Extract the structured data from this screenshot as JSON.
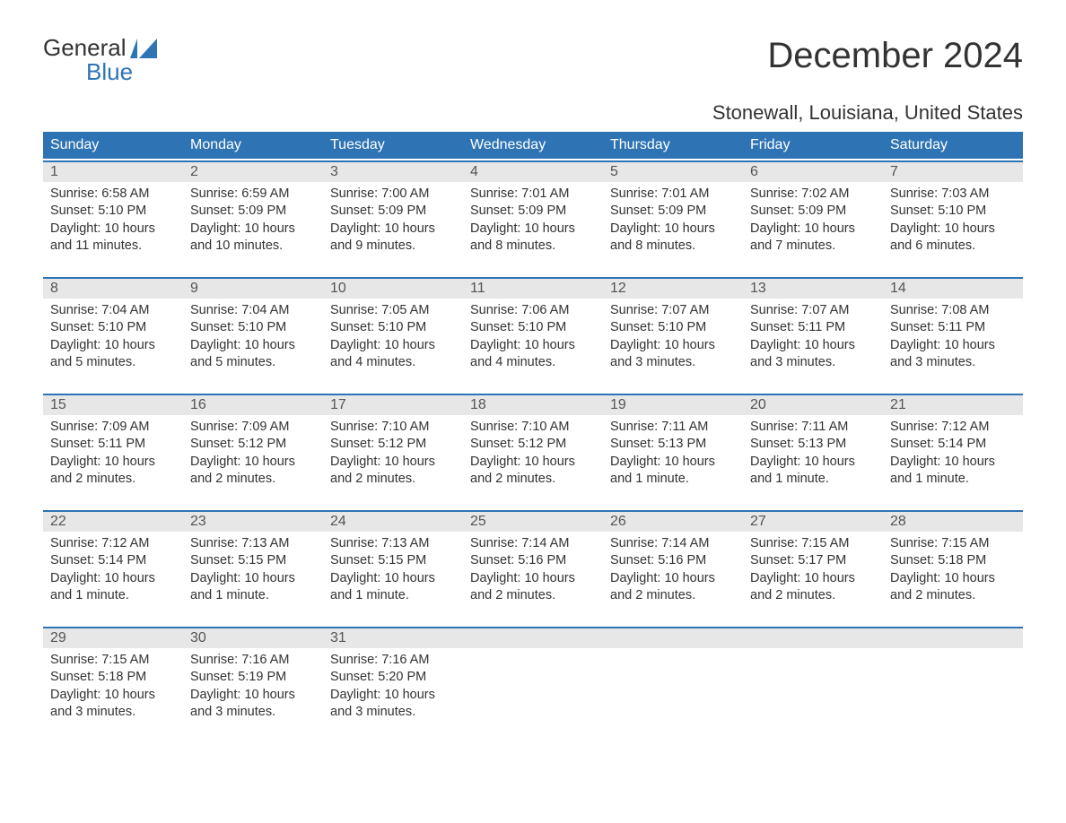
{
  "logo": {
    "line1": "General",
    "line2": "Blue",
    "accent_color": "#2e74b5"
  },
  "title": "December 2024",
  "location": "Stonewall, Louisiana, United States",
  "colors": {
    "header_bg": "#2e74b5",
    "header_text": "#ffffff",
    "daynum_bg": "#e7e7e7",
    "body_text": "#333333",
    "page_bg": "#ffffff"
  },
  "typography": {
    "title_fontsize": 40,
    "location_fontsize": 22,
    "weekday_fontsize": 16,
    "daynum_fontsize": 16,
    "body_fontsize": 14.5
  },
  "weekdays": [
    "Sunday",
    "Monday",
    "Tuesday",
    "Wednesday",
    "Thursday",
    "Friday",
    "Saturday"
  ],
  "weeks": [
    [
      {
        "n": "1",
        "sr": "Sunrise: 6:58 AM",
        "ss": "Sunset: 5:10 PM",
        "d1": "Daylight: 10 hours",
        "d2": "and 11 minutes."
      },
      {
        "n": "2",
        "sr": "Sunrise: 6:59 AM",
        "ss": "Sunset: 5:09 PM",
        "d1": "Daylight: 10 hours",
        "d2": "and 10 minutes."
      },
      {
        "n": "3",
        "sr": "Sunrise: 7:00 AM",
        "ss": "Sunset: 5:09 PM",
        "d1": "Daylight: 10 hours",
        "d2": "and 9 minutes."
      },
      {
        "n": "4",
        "sr": "Sunrise: 7:01 AM",
        "ss": "Sunset: 5:09 PM",
        "d1": "Daylight: 10 hours",
        "d2": "and 8 minutes."
      },
      {
        "n": "5",
        "sr": "Sunrise: 7:01 AM",
        "ss": "Sunset: 5:09 PM",
        "d1": "Daylight: 10 hours",
        "d2": "and 8 minutes."
      },
      {
        "n": "6",
        "sr": "Sunrise: 7:02 AM",
        "ss": "Sunset: 5:09 PM",
        "d1": "Daylight: 10 hours",
        "d2": "and 7 minutes."
      },
      {
        "n": "7",
        "sr": "Sunrise: 7:03 AM",
        "ss": "Sunset: 5:10 PM",
        "d1": "Daylight: 10 hours",
        "d2": "and 6 minutes."
      }
    ],
    [
      {
        "n": "8",
        "sr": "Sunrise: 7:04 AM",
        "ss": "Sunset: 5:10 PM",
        "d1": "Daylight: 10 hours",
        "d2": "and 5 minutes."
      },
      {
        "n": "9",
        "sr": "Sunrise: 7:04 AM",
        "ss": "Sunset: 5:10 PM",
        "d1": "Daylight: 10 hours",
        "d2": "and 5 minutes."
      },
      {
        "n": "10",
        "sr": "Sunrise: 7:05 AM",
        "ss": "Sunset: 5:10 PM",
        "d1": "Daylight: 10 hours",
        "d2": "and 4 minutes."
      },
      {
        "n": "11",
        "sr": "Sunrise: 7:06 AM",
        "ss": "Sunset: 5:10 PM",
        "d1": "Daylight: 10 hours",
        "d2": "and 4 minutes."
      },
      {
        "n": "12",
        "sr": "Sunrise: 7:07 AM",
        "ss": "Sunset: 5:10 PM",
        "d1": "Daylight: 10 hours",
        "d2": "and 3 minutes."
      },
      {
        "n": "13",
        "sr": "Sunrise: 7:07 AM",
        "ss": "Sunset: 5:11 PM",
        "d1": "Daylight: 10 hours",
        "d2": "and 3 minutes."
      },
      {
        "n": "14",
        "sr": "Sunrise: 7:08 AM",
        "ss": "Sunset: 5:11 PM",
        "d1": "Daylight: 10 hours",
        "d2": "and 3 minutes."
      }
    ],
    [
      {
        "n": "15",
        "sr": "Sunrise: 7:09 AM",
        "ss": "Sunset: 5:11 PM",
        "d1": "Daylight: 10 hours",
        "d2": "and 2 minutes."
      },
      {
        "n": "16",
        "sr": "Sunrise: 7:09 AM",
        "ss": "Sunset: 5:12 PM",
        "d1": "Daylight: 10 hours",
        "d2": "and 2 minutes."
      },
      {
        "n": "17",
        "sr": "Sunrise: 7:10 AM",
        "ss": "Sunset: 5:12 PM",
        "d1": "Daylight: 10 hours",
        "d2": "and 2 minutes."
      },
      {
        "n": "18",
        "sr": "Sunrise: 7:10 AM",
        "ss": "Sunset: 5:12 PM",
        "d1": "Daylight: 10 hours",
        "d2": "and 2 minutes."
      },
      {
        "n": "19",
        "sr": "Sunrise: 7:11 AM",
        "ss": "Sunset: 5:13 PM",
        "d1": "Daylight: 10 hours",
        "d2": "and 1 minute."
      },
      {
        "n": "20",
        "sr": "Sunrise: 7:11 AM",
        "ss": "Sunset: 5:13 PM",
        "d1": "Daylight: 10 hours",
        "d2": "and 1 minute."
      },
      {
        "n": "21",
        "sr": "Sunrise: 7:12 AM",
        "ss": "Sunset: 5:14 PM",
        "d1": "Daylight: 10 hours",
        "d2": "and 1 minute."
      }
    ],
    [
      {
        "n": "22",
        "sr": "Sunrise: 7:12 AM",
        "ss": "Sunset: 5:14 PM",
        "d1": "Daylight: 10 hours",
        "d2": "and 1 minute."
      },
      {
        "n": "23",
        "sr": "Sunrise: 7:13 AM",
        "ss": "Sunset: 5:15 PM",
        "d1": "Daylight: 10 hours",
        "d2": "and 1 minute."
      },
      {
        "n": "24",
        "sr": "Sunrise: 7:13 AM",
        "ss": "Sunset: 5:15 PM",
        "d1": "Daylight: 10 hours",
        "d2": "and 1 minute."
      },
      {
        "n": "25",
        "sr": "Sunrise: 7:14 AM",
        "ss": "Sunset: 5:16 PM",
        "d1": "Daylight: 10 hours",
        "d2": "and 2 minutes."
      },
      {
        "n": "26",
        "sr": "Sunrise: 7:14 AM",
        "ss": "Sunset: 5:16 PM",
        "d1": "Daylight: 10 hours",
        "d2": "and 2 minutes."
      },
      {
        "n": "27",
        "sr": "Sunrise: 7:15 AM",
        "ss": "Sunset: 5:17 PM",
        "d1": "Daylight: 10 hours",
        "d2": "and 2 minutes."
      },
      {
        "n": "28",
        "sr": "Sunrise: 7:15 AM",
        "ss": "Sunset: 5:18 PM",
        "d1": "Daylight: 10 hours",
        "d2": "and 2 minutes."
      }
    ],
    [
      {
        "n": "29",
        "sr": "Sunrise: 7:15 AM",
        "ss": "Sunset: 5:18 PM",
        "d1": "Daylight: 10 hours",
        "d2": "and 3 minutes."
      },
      {
        "n": "30",
        "sr": "Sunrise: 7:16 AM",
        "ss": "Sunset: 5:19 PM",
        "d1": "Daylight: 10 hours",
        "d2": "and 3 minutes."
      },
      {
        "n": "31",
        "sr": "Sunrise: 7:16 AM",
        "ss": "Sunset: 5:20 PM",
        "d1": "Daylight: 10 hours",
        "d2": "and 3 minutes."
      },
      {
        "n": "",
        "sr": "",
        "ss": "",
        "d1": "",
        "d2": "",
        "empty": true
      },
      {
        "n": "",
        "sr": "",
        "ss": "",
        "d1": "",
        "d2": "",
        "empty": true
      },
      {
        "n": "",
        "sr": "",
        "ss": "",
        "d1": "",
        "d2": "",
        "empty": true
      },
      {
        "n": "",
        "sr": "",
        "ss": "",
        "d1": "",
        "d2": "",
        "empty": true
      }
    ]
  ]
}
